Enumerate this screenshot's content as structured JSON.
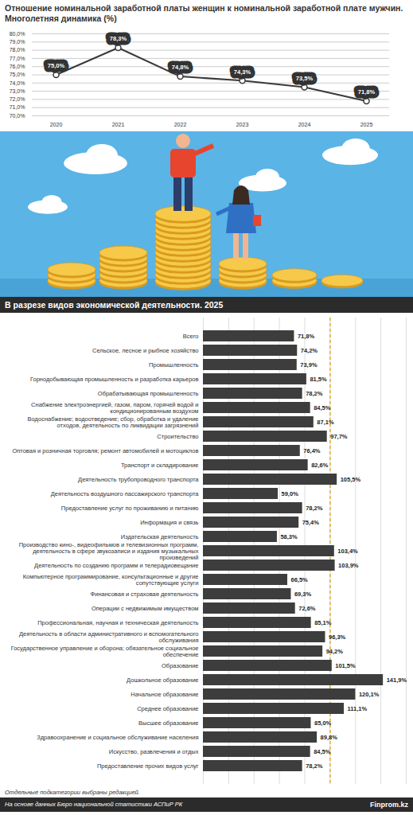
{
  "chart_data": [
    {
      "type": "line",
      "title": "Отношение номинальной заработной платы женщин к номинальной заработной плате мужчин. Многолетняя динамика (%)",
      "x": [
        2020,
        2021,
        2022,
        2023,
        2024,
        2025
      ],
      "values": [
        75.0,
        78.3,
        74.8,
        74.3,
        73.5,
        71.8
      ],
      "value_labels": [
        "75,0%",
        "78,3%",
        "74,8%",
        "74,3%",
        "73,5%",
        "71,8%"
      ],
      "ylim": [
        70,
        80
      ],
      "yticks": [
        {
          "value": 70,
          "label": "70,0%"
        },
        {
          "value": 71,
          "label": "71,0%"
        },
        {
          "value": 72,
          "label": "72,0%"
        },
        {
          "value": 73,
          "label": "73,0%"
        },
        {
          "value": 74,
          "label": "74,0%"
        },
        {
          "value": 75,
          "label": "75,0%"
        },
        {
          "value": 76,
          "label": "76,0%"
        },
        {
          "value": 77,
          "label": "77,0%"
        },
        {
          "value": 78,
          "label": "78,0%"
        },
        {
          "value": 79,
          "label": "79,0%"
        },
        {
          "value": 80,
          "label": "80,0%"
        }
      ],
      "grid": true,
      "data_labels": true,
      "color": "#3a3a3a",
      "marker": "circle"
    },
    {
      "type": "bar",
      "title": "В разрезе видов экономической деятельности. 2025",
      "orientation": "horizontal",
      "categories": [
        "Всего",
        "Сельское, лесное и рыбное хозяйство",
        "Промышленность",
        "Горнодобывающая промышленность и разработка карьеров",
        "Обрабатывающая промышленность",
        "Снабжение электроэнергией, газом, паром, горячей водой и кондиционированным воздухом",
        "Водоснабжение; водоотведение; сбор, обработка и удаление отходов, деятельность по ликвидации загрязнений",
        "Строительство",
        "Оптовая и розничная торговля; ремонт автомобилей и мотоциклов",
        "Транспорт и складирование",
        "Деятельность трубопроводного транспорта",
        "Деятельность воздушного пассажирского транспорта",
        "Предоставление услуг по проживанию и питанию",
        "Информация и связь",
        "Издательская деятельность",
        "Производство кино-, видеофильмов и телевизионных программ, деятельность в сфере звукозаписи и издания музыкальных произведений",
        "Деятельность по созданию программ и телерадиовещание",
        "Компьютерное программирование, консультационные и другие сопутствующие услуги",
        "Финансовая и страховая деятельность",
        "Операции с недвижимым имуществом",
        "Профессиональная, научная и техническая деятельность",
        "Деятельность в области административного и вспомогательного обслуживания",
        "Государственное управление и оборона; обязательное социальное обеспечение",
        "Образование",
        "Дошкольное образование",
        "Начальное образование",
        "Среднее образование",
        "Высшее образование",
        "Здравоохранение и социальное обслуживание населения",
        "Искусство, развлечения и отдых",
        "Предоставление прочих видов услуг"
      ],
      "values": [
        71.8,
        74.2,
        73.9,
        81.5,
        78.2,
        84.5,
        87.1,
        97.7,
        76.4,
        82.6,
        105.5,
        59.0,
        78.2,
        75.4,
        58.3,
        103.4,
        103.9,
        66.5,
        69.3,
        72.6,
        85.1,
        96.3,
        94.2,
        101.5,
        141.9,
        120.1,
        111.1,
        85.0,
        89.8,
        84.5,
        78.2
      ],
      "value_labels": [
        "71,8%",
        "74,2%",
        "73,9%",
        "81,5%",
        "78,2%",
        "84,5%",
        "87,1%",
        "97,7%",
        "76,4%",
        "82,6%",
        "105,5%",
        "59,0%",
        "78,2%",
        "75,4%",
        "58,3%",
        "103,4%",
        "103,9%",
        "66,5%",
        "69,3%",
        "72,6%",
        "85,1%",
        "96,3%",
        "94,2%",
        "101,5%",
        "141,9%",
        "120,1%",
        "111,1%",
        "85,0%",
        "89,8%",
        "84,5%",
        "78,2%"
      ],
      "xlim": [
        0,
        160
      ],
      "xticks": [
        0,
        20,
        40,
        60,
        80,
        100,
        120,
        140,
        160
      ],
      "reference_line": 100,
      "grid": true,
      "tick_labels": "y",
      "data_labels": true,
      "color": "#3d3d3d",
      "caption": "Отдельные подкатегории выбраны редакцией.",
      "source": "На основе данных Бюро национальной статистики АСПиР РК",
      "brand": "Finprom.kz"
    }
  ]
}
